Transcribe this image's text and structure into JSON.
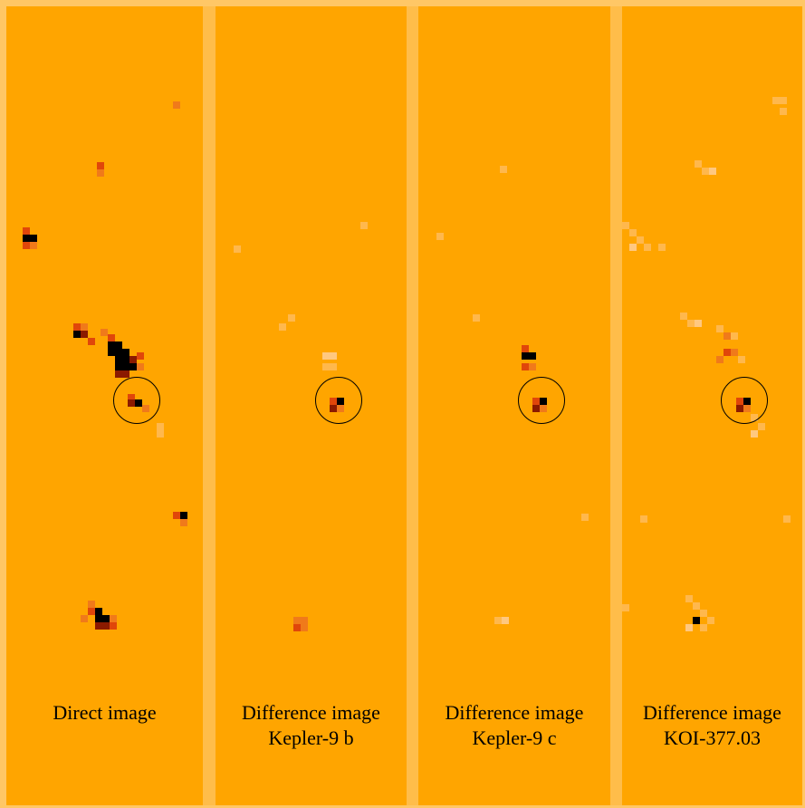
{
  "colors": {
    "background": "#ffa500",
    "divider": "#ffbd4a",
    "edge": "#ffc766",
    "ring": "#000000"
  },
  "panels": [
    {
      "caption_line1": "Direct image",
      "caption_line2": ""
    },
    {
      "caption_line1": "Difference image",
      "caption_line2": "Kepler-9 b"
    },
    {
      "caption_line1": "Difference image",
      "caption_line2": "Kepler-9 c"
    },
    {
      "caption_line1": "Difference image",
      "caption_line2": "KOI-377.03"
    }
  ]
}
